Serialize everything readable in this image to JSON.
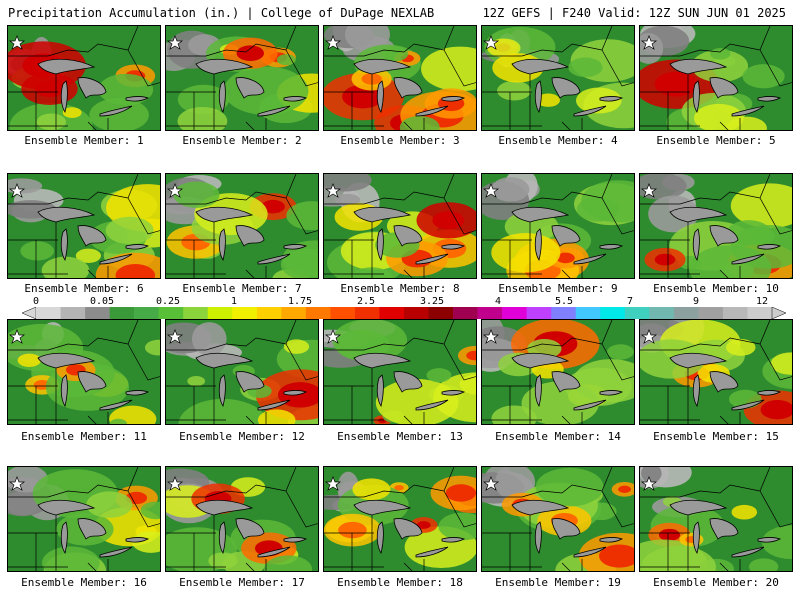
{
  "header": {
    "left": "Precipitation Accumulation (in.) | College of DuPage NEXLAB",
    "right": "12Z GEFS | F240 Valid: 12Z SUN JUN 01 2025"
  },
  "members": [
    "Ensemble Member: 1",
    "Ensemble Member: 2",
    "Ensemble Member: 3",
    "Ensemble Member: 4",
    "Ensemble Member: 5",
    "Ensemble Member: 6",
    "Ensemble Member: 7",
    "Ensemble Member: 8",
    "Ensemble Member: 9",
    "Ensemble Member: 10",
    "Ensemble Member: 11",
    "Ensemble Member: 12",
    "Ensemble Member: 13",
    "Ensemble Member: 14",
    "Ensemble Member: 15",
    "Ensemble Member: 16",
    "Ensemble Member: 17",
    "Ensemble Member: 18",
    "Ensemble Member: 19",
    "Ensemble Member: 20"
  ],
  "colorbar": {
    "labels": [
      "0",
      "0.05",
      "0.25",
      "1",
      "1.75",
      "2.5",
      "3.25",
      "4",
      "5.5",
      "7",
      "9",
      "12"
    ],
    "colors": [
      "#d8d8d8",
      "#b4b4b4",
      "#8c8c8c",
      "#3a9a3a",
      "#46aa46",
      "#58c036",
      "#8cd43c",
      "#ccf000",
      "#f0f000",
      "#ffd000",
      "#ffa800",
      "#ff7800",
      "#ff5000",
      "#f03000",
      "#e00000",
      "#b80000",
      "#8c0000",
      "#a00050",
      "#c0008c",
      "#e000d8",
      "#c040ff",
      "#8080ff",
      "#40c8ff",
      "#00e8e8",
      "#40d0c0",
      "#70b8b0",
      "#8ca0a0",
      "#a0a0a0",
      "#b8b8b8",
      "#cccccc"
    ]
  },
  "ui_colors": {
    "coast": "#000000",
    "land_base": "#2e8b2e",
    "lake": "#9a9a9a"
  },
  "icons": [
    "compass-icon"
  ]
}
